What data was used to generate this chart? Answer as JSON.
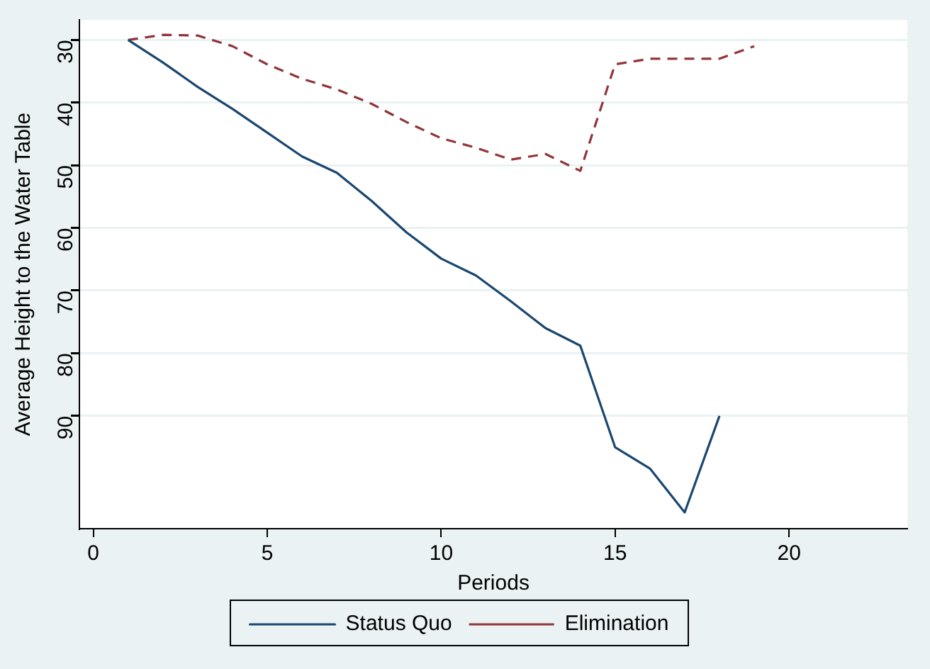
{
  "chart_data": {
    "type": "line",
    "xlabel": "Periods",
    "ylabel": "Average Height to the Water Table",
    "x": [
      1,
      2,
      3,
      4,
      5,
      6,
      7,
      8,
      9,
      10,
      11,
      12,
      13,
      14,
      15,
      16,
      17,
      18,
      19
    ],
    "series": [
      {
        "name": "Status Quo",
        "color": "#1a476f",
        "line_style": "solid",
        "values": [
          30,
          33.6,
          37.5,
          41,
          44.8,
          48.6,
          51.2,
          55.7,
          60.7,
          64.9,
          67.6,
          71.7,
          76,
          78.8,
          95,
          98.4,
          105.4,
          90,
          null
        ]
      },
      {
        "name": "Elimination",
        "color": "#90353b",
        "line_style": "dashed",
        "values": [
          30,
          29.2,
          29.3,
          31,
          33.9,
          36.2,
          37.9,
          40.2,
          43.1,
          45.7,
          47.2,
          49.1,
          48.2,
          50.9,
          33.9,
          33,
          33,
          33,
          31
        ]
      }
    ],
    "xlim": [
      -0.4,
      23.4
    ],
    "xticks": [
      0,
      5,
      10,
      15,
      20
    ],
    "ylim": [
      108,
      26.8
    ],
    "yticks": [
      30,
      40,
      50,
      60,
      70,
      80,
      90
    ],
    "grid": "y",
    "legend": "bottom",
    "marker": "none"
  }
}
